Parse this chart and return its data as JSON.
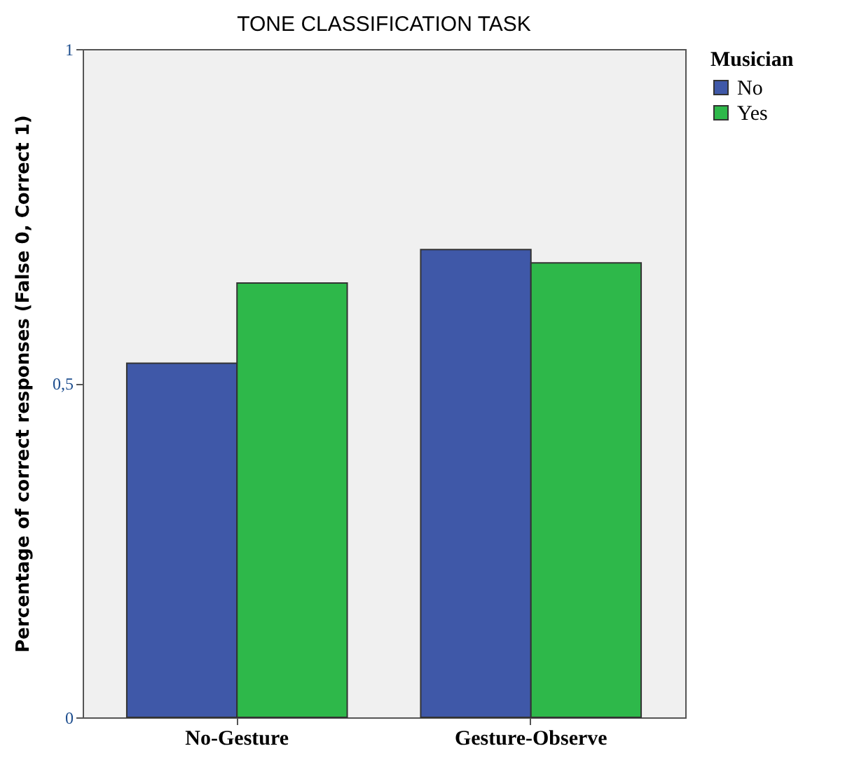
{
  "chart_data": {
    "type": "bar",
    "title": "TONE CLASSIFICATION TASK",
    "ylabel": "Percentage of correct responses (False 0, Correct 1)",
    "legend_title": "Musician",
    "categories": [
      "No-Gesture",
      "Gesture-Observe"
    ],
    "series": [
      {
        "name": "No",
        "color": "#3f58a8",
        "values": [
          0.53,
          0.7
        ]
      },
      {
        "name": "Yes",
        "color": "#2eb84a",
        "values": [
          0.65,
          0.68
        ]
      }
    ],
    "ylim": [
      0,
      1
    ],
    "yticks": [
      0,
      {
        "value": 0.5,
        "label": "0,5"
      },
      1
    ],
    "grid": false,
    "legend": "top right"
  }
}
